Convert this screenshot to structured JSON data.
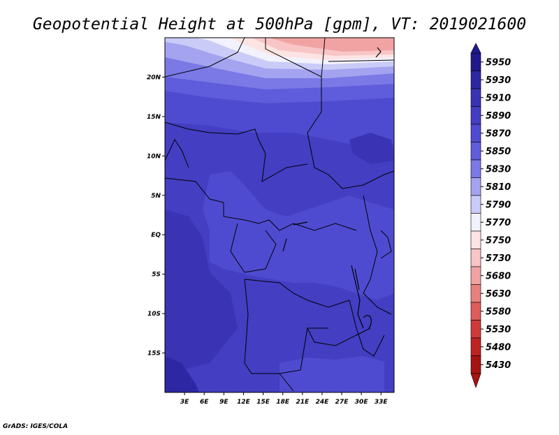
{
  "chart_data": {
    "type": "heatmap",
    "title": "Geopotential Height at 500hPa [gpm], VT: 2019021600",
    "x_ticks": [
      "3E",
      "6E",
      "9E",
      "12E",
      "15E",
      "18E",
      "21E",
      "24E",
      "27E",
      "30E",
      "33E"
    ],
    "x_tick_values": [
      3,
      6,
      9,
      12,
      15,
      18,
      21,
      24,
      27,
      30,
      33
    ],
    "y_ticks": [
      "20N",
      "15N",
      "10N",
      "5N",
      "EQ",
      "5S",
      "10S",
      "15S"
    ],
    "y_tick_values": [
      20,
      15,
      10,
      5,
      0,
      -5,
      -10,
      -15
    ],
    "xlim": [
      0,
      35
    ],
    "ylim": [
      -20,
      25
    ],
    "colorbar": {
      "levels": [
        "5950",
        "5930",
        "5910",
        "5890",
        "5870",
        "5850",
        "5830",
        "5810",
        "5790",
        "5770",
        "5750",
        "5730",
        "5680",
        "5630",
        "5580",
        "5530",
        "5480",
        "5430"
      ],
      "colors": [
        "#201a8c",
        "#2e27a3",
        "#3a33b4",
        "#433ec2",
        "#4f4bd0",
        "#5f5ddb",
        "#7a79e6",
        "#a3a3f0",
        "#cbcbf8",
        "#f2f2fd",
        "#fde4e4",
        "#f8c6c6",
        "#f1a3a3",
        "#e88080",
        "#dd5c5c",
        "#cf3a3a",
        "#be2323",
        "#a61313"
      ]
    }
  },
  "footer": "GrADS: IGES/COLA"
}
